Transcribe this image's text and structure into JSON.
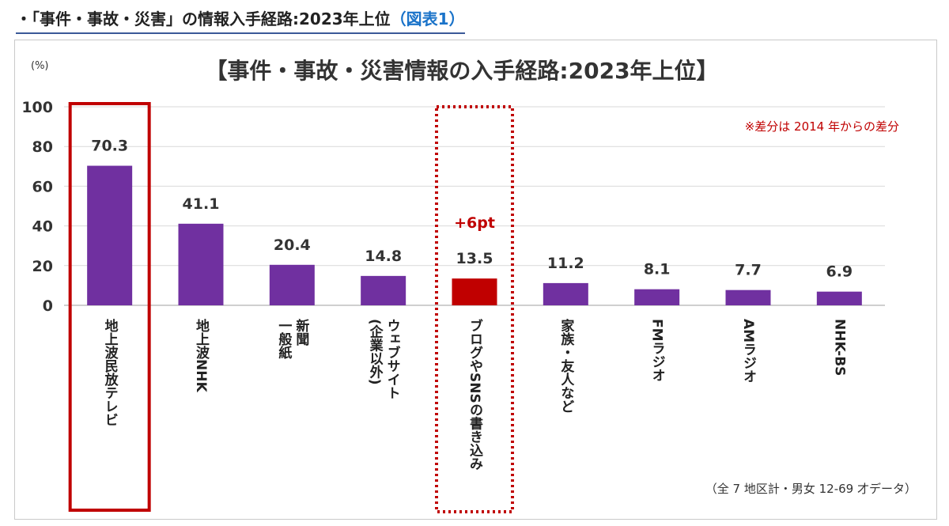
{
  "page_heading": {
    "text": "・「事件・事故・災害」の情報入手経路:2023年上位",
    "ref": "（図表1）"
  },
  "chart_data": {
    "type": "bar",
    "title": "【事件・事故・災害情報の入手経路:2023年上位】",
    "ylabel": "(%)",
    "ylim": [
      0,
      100
    ],
    "yticks": [
      "0",
      "20",
      "40",
      "60",
      "80",
      "100"
    ],
    "categories": [
      "地上波民放テレビ",
      "地上波NHK",
      "新聞 一般紙",
      "ウェブサイト (企業以外)",
      "ブログやSNSの書き込み",
      "家族・友人など",
      "FMラジオ",
      "AMラジオ",
      "NHK-BS"
    ],
    "values": [
      70.3,
      41.1,
      20.4,
      14.8,
      13.5,
      11.2,
      8.1,
      7.7,
      6.9
    ],
    "value_labels": [
      "70.3",
      "41.1",
      "20.4",
      "14.8",
      "13.5",
      "11.2",
      "8.1",
      "7.7",
      "6.9"
    ],
    "highlight_index": 4,
    "highlight_annotation": "+6pt",
    "boxed_solid_index": 0,
    "boxed_dotted_index": 4,
    "note": "※差分は 2014 年からの差分",
    "source": "（全 7 地区計・男女 12-69 才データ）",
    "bar_color": "#7030a0",
    "highlight_color": "#c00000",
    "grid": true
  }
}
